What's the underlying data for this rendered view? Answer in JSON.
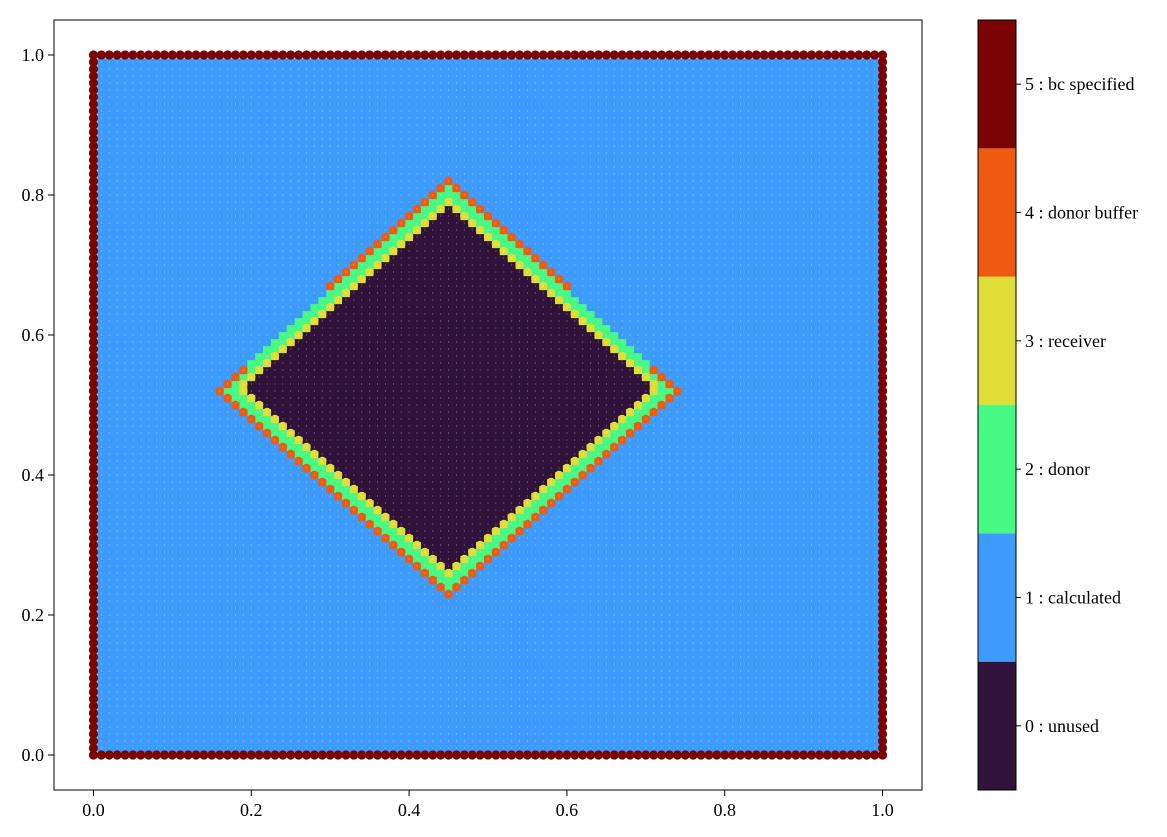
{
  "chart_data": {
    "type": "scatter",
    "title": "",
    "xlabel": "",
    "ylabel": "",
    "xlim": [
      -0.05,
      1.05
    ],
    "ylim": [
      -0.05,
      1.05
    ],
    "x_ticks": [
      "0.0",
      "0.2",
      "0.4",
      "0.6",
      "0.8",
      "1.0"
    ],
    "y_ticks": [
      "0.0",
      "0.2",
      "0.4",
      "0.6",
      "0.8",
      "1.0"
    ],
    "grid": false,
    "grid_points_per_axis": 101,
    "inner_region": {
      "shape": "square rotated 45 degrees",
      "corners": [
        [
          0.45,
          0.82
        ],
        [
          0.745,
          0.53
        ],
        [
          0.45,
          0.225
        ],
        [
          0.155,
          0.52
        ]
      ]
    },
    "categories": [
      {
        "value": 0,
        "label": "0 : unused",
        "color": "#30123b"
      },
      {
        "value": 1,
        "label": "1 : calculated",
        "color": "#3e9bfe"
      },
      {
        "value": 2,
        "label": "2 : donor",
        "color": "#46f884"
      },
      {
        "value": 3,
        "label": "3 : receiver",
        "color": "#e1dd37"
      },
      {
        "value": 4,
        "label": "4 : donor buffer",
        "color": "#f05b12"
      },
      {
        "value": 5,
        "label": "5 : bc specified",
        "color": "#7a0403"
      }
    ],
    "point_color": "#ffffff",
    "colorbar": {
      "placement": "right",
      "range": [
        -0.5,
        5.5
      ]
    }
  }
}
